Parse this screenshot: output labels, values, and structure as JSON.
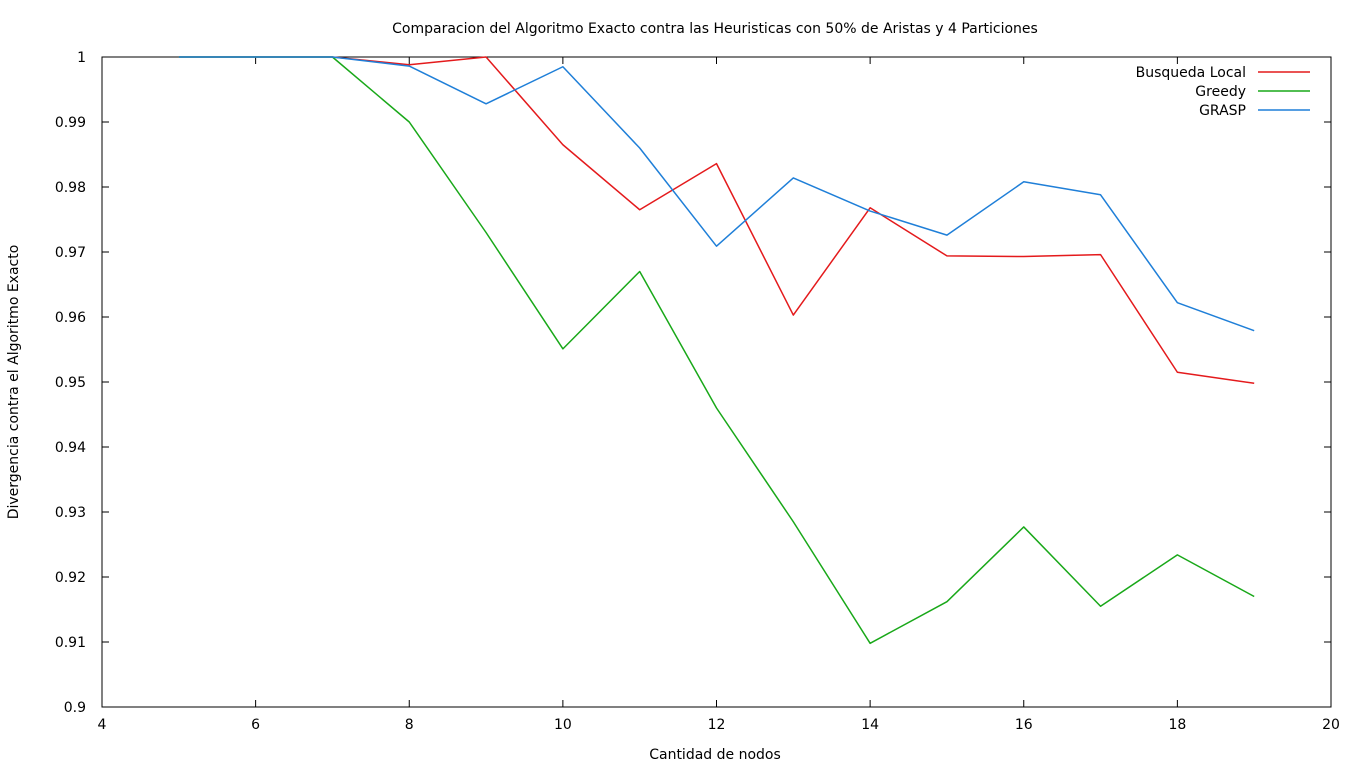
{
  "chart_data": {
    "type": "line",
    "title": "Comparacion del Algoritmo Exacto contra las Heuristicas con 50% de Aristas y 4 Particiones",
    "xlabel": "Cantidad de nodos",
    "ylabel": "Divergencia contra el Algoritmo Exacto",
    "xlim": [
      4,
      20
    ],
    "ylim": [
      0.9,
      1.0
    ],
    "x_ticks": [
      4,
      6,
      8,
      10,
      12,
      14,
      16,
      18,
      20
    ],
    "x_tick_labels": [
      "4",
      "6",
      "8",
      "10",
      "12",
      "14",
      "16",
      "18",
      "20"
    ],
    "y_ticks": [
      0.9,
      0.91,
      0.92,
      0.93,
      0.94,
      0.95,
      0.96,
      0.97,
      0.98,
      0.99,
      1.0
    ],
    "y_tick_labels": [
      "0.9",
      "0.91",
      "0.92",
      "0.93",
      "0.94",
      "0.95",
      "0.96",
      "0.97",
      "0.98",
      "0.99",
      "1"
    ],
    "grid": false,
    "legend_position": "top-right",
    "x": [
      5,
      6,
      7,
      8,
      9,
      10,
      11,
      12,
      13,
      14,
      15,
      16,
      17,
      18,
      19
    ],
    "series": [
      {
        "name": "Busqueda Local",
        "color": "#e41a1c",
        "values": [
          1.0,
          1.0,
          1.0,
          0.9988,
          1.0,
          0.9865,
          0.9765,
          0.9836,
          0.9603,
          0.9768,
          0.9694,
          0.9693,
          0.9696,
          0.9515,
          0.9498
        ]
      },
      {
        "name": "Greedy",
        "color": "#19a819",
        "values": [
          1.0,
          1.0,
          1.0,
          0.99,
          0.973,
          0.9551,
          0.967,
          0.946,
          0.9285,
          0.9098,
          0.9162,
          0.9277,
          0.9155,
          0.9234,
          0.917
        ]
      },
      {
        "name": "GRASP",
        "color": "#1f7fd8",
        "values": [
          1.0,
          1.0,
          1.0,
          0.9986,
          0.9928,
          0.9985,
          0.986,
          0.9709,
          0.9814,
          0.9763,
          0.9726,
          0.9808,
          0.9788,
          0.9622,
          0.9579
        ]
      }
    ]
  }
}
